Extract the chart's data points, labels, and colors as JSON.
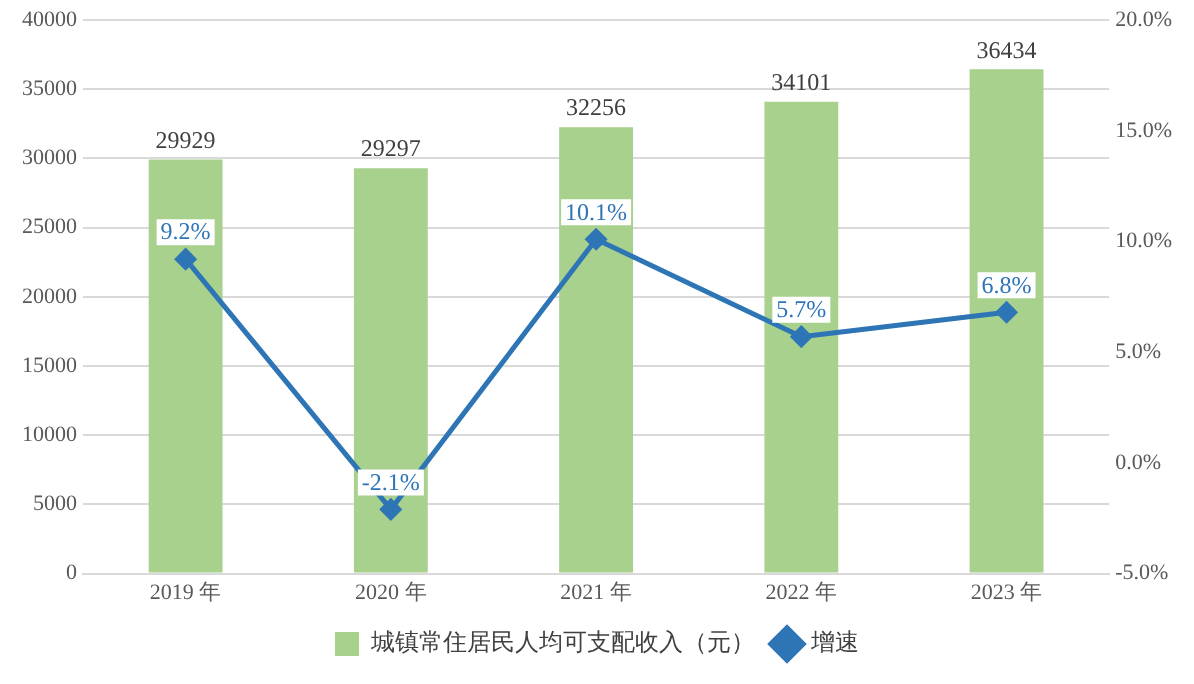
{
  "chart_data": {
    "type": "bar",
    "categories": [
      "2019 年",
      "2020 年",
      "2021 年",
      "2022 年",
      "2023 年"
    ],
    "series": [
      {
        "name": "城镇常住居民人均可支配收入（元）",
        "color": "#a9d18e",
        "values": [
          29929,
          29297,
          32256,
          34101,
          36434
        ],
        "value_labels": [
          "29929",
          "29297",
          "32256",
          "34101",
          "36434"
        ]
      },
      {
        "name": "增速",
        "type": "line",
        "axis": "y2",
        "color": "#2e75b6",
        "values": [
          9.2,
          -2.1,
          10.1,
          5.7,
          6.8
        ],
        "value_labels": [
          "9.2%",
          "-2.1%",
          "10.1%",
          "5.7%",
          "6.8%"
        ]
      }
    ],
    "ylim": [
      0,
      40000
    ],
    "yticks": [
      0,
      5000,
      10000,
      15000,
      20000,
      25000,
      30000,
      35000,
      40000
    ],
    "y2lim": [
      -5,
      20
    ],
    "y2ticks": [
      {
        "value": -5,
        "label": "-5.0%"
      },
      {
        "value": 0,
        "label": "0.0%"
      },
      {
        "value": 5,
        "label": "5.0%"
      },
      {
        "value": 10,
        "label": "10.0%"
      },
      {
        "value": 15,
        "label": "15.0%"
      },
      {
        "value": 20,
        "label": "20.0%"
      }
    ],
    "grid": "y",
    "legend": "bottom",
    "marker": "diamond",
    "line_style": "solid"
  }
}
